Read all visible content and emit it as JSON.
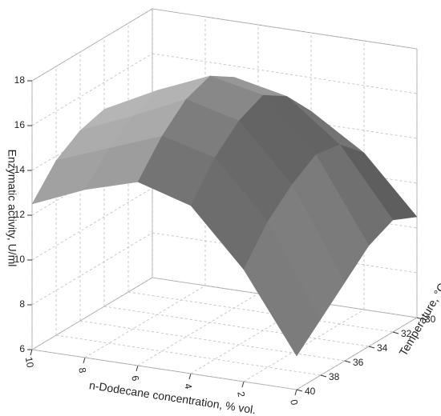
{
  "chart_data": {
    "type": "surface",
    "xlabel": "n-Dodecane concentration, % vol.",
    "ylabel": "Temperature, °C",
    "zlabel": "Enzymatic activity, U/ml",
    "x": [
      0,
      2,
      4,
      6,
      8,
      10
    ],
    "y": [
      30,
      32,
      34,
      36,
      38,
      40
    ],
    "z": [
      [
        10.5,
        13.0,
        14.5,
        15.0,
        14.8,
        14.0
      ],
      [
        11.0,
        14.0,
        15.8,
        16.3,
        15.6,
        14.5
      ],
      [
        10.5,
        14.2,
        16.5,
        17.0,
        16.0,
        14.8
      ],
      [
        9.5,
        13.5,
        16.0,
        16.6,
        15.5,
        14.5
      ],
      [
        8.5,
        12.5,
        15.0,
        15.6,
        14.7,
        13.8
      ],
      [
        7.5,
        11.0,
        13.5,
        14.2,
        13.5,
        12.5
      ]
    ],
    "xlim": [
      0,
      10
    ],
    "ylim": [
      30,
      40
    ],
    "zlim": [
      6,
      18
    ],
    "xticks": [
      0,
      2,
      4,
      6,
      8,
      10
    ],
    "yticks": [
      30,
      32,
      34,
      36,
      38,
      40
    ],
    "zticks": [
      6,
      8,
      10,
      12,
      14,
      16,
      18
    ],
    "grid": true,
    "color": "#c8c8c8"
  }
}
